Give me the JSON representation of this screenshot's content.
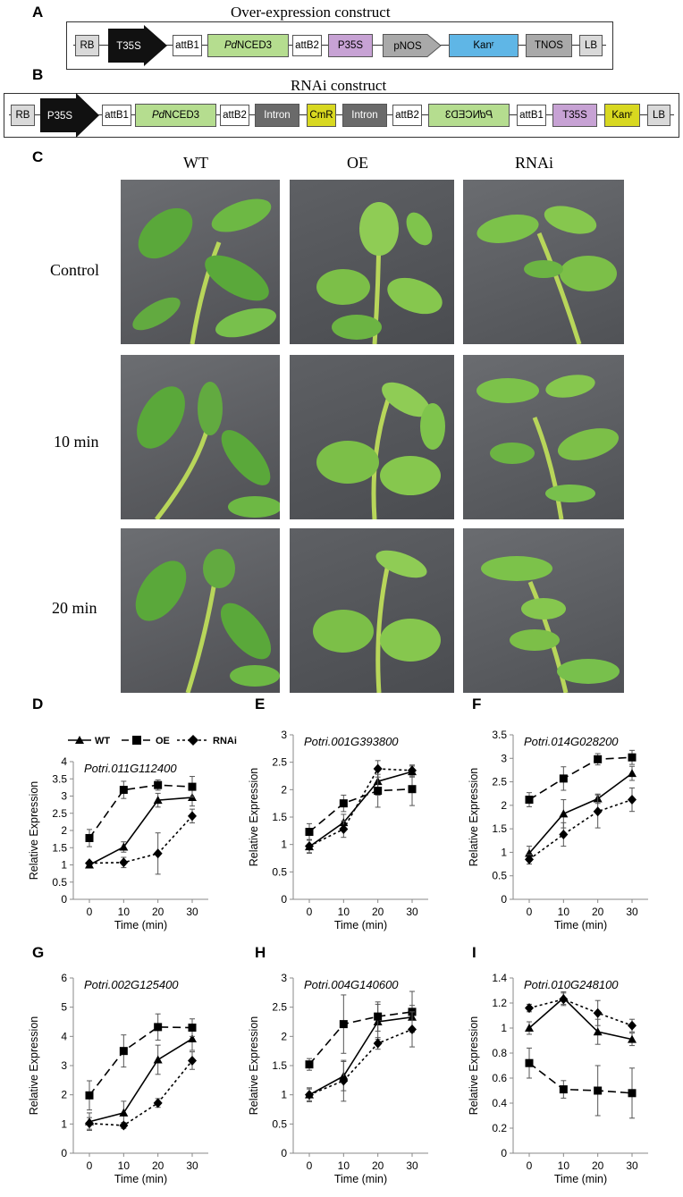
{
  "panels": {
    "A": "A",
    "B": "B",
    "C": "C",
    "D": "D",
    "E": "E",
    "F": "F",
    "G": "G",
    "H": "H",
    "I": "I"
  },
  "construct_a": {
    "title": "Over-expression construct",
    "elements": [
      "RB",
      "T35S",
      "attB1",
      "PdNCED3",
      "attB2",
      "P35S",
      "pNOS",
      "Kanʳ",
      "TNOS",
      "LB"
    ]
  },
  "construct_b": {
    "title": "RNAi construct",
    "elements": [
      "RB",
      "P35S",
      "attB1",
      "PdNCED3",
      "attB2",
      "Intron",
      "CmR",
      "Intron",
      "attB2",
      "PdNCED3",
      "attB1",
      "T35S",
      "Kanʳ",
      "LB"
    ]
  },
  "photos": {
    "columns": [
      "WT",
      "OE",
      "RNAi"
    ],
    "rows": [
      "Control",
      "10 min",
      "20 min"
    ]
  },
  "legend": {
    "wt": "WT",
    "oe": "OE",
    "rnai": "RNAi"
  },
  "chart_data": [
    {
      "panel": "D",
      "type": "line",
      "title": "Potri.011G112400",
      "xlabel": "Time (min)",
      "ylabel": "Relative Expression",
      "x": [
        0,
        10,
        20,
        30
      ],
      "ylim": [
        0,
        4
      ],
      "yticks": [
        0,
        0.5,
        1,
        1.5,
        2,
        2.5,
        3,
        3.5,
        4
      ],
      "series": [
        {
          "name": "WT",
          "values": [
            1.0,
            1.52,
            2.88,
            2.96
          ],
          "err": [
            0.05,
            0.15,
            0.2,
            0.25
          ]
        },
        {
          "name": "OE",
          "values": [
            1.78,
            3.18,
            3.32,
            3.27
          ],
          "err": [
            0.25,
            0.25,
            0.15,
            0.3
          ]
        },
        {
          "name": "RNAi",
          "values": [
            1.05,
            1.07,
            1.33,
            2.42
          ],
          "err": [
            0.05,
            0.15,
            0.6,
            0.2
          ]
        }
      ]
    },
    {
      "panel": "E",
      "type": "line",
      "title": "Potri.001G393800",
      "xlabel": "Time (min)",
      "ylabel": "Relative Expression",
      "x": [
        0,
        10,
        20,
        30
      ],
      "ylim": [
        0,
        3
      ],
      "yticks": [
        0,
        0.5,
        1,
        1.5,
        2,
        2.5,
        3
      ],
      "series": [
        {
          "name": "WT",
          "values": [
            0.96,
            1.4,
            2.15,
            2.33
          ],
          "err": [
            0.12,
            0.15,
            0.25,
            0.1
          ]
        },
        {
          "name": "OE",
          "values": [
            1.23,
            1.75,
            1.98,
            2.01
          ],
          "err": [
            0.15,
            0.15,
            0.3,
            0.3
          ]
        },
        {
          "name": "RNAi",
          "values": [
            0.97,
            1.28,
            2.38,
            2.35
          ],
          "err": [
            0.12,
            0.15,
            0.15,
            0.1
          ]
        }
      ]
    },
    {
      "panel": "F",
      "type": "line",
      "title": "Potri.014G028200",
      "xlabel": "Time (min)",
      "ylabel": "Relative Expression",
      "x": [
        0,
        10,
        20,
        30
      ],
      "ylim": [
        0,
        3.5
      ],
      "yticks": [
        0,
        0.5,
        1,
        1.5,
        2,
        2.5,
        3,
        3.5
      ],
      "series": [
        {
          "name": "WT",
          "values": [
            0.98,
            1.82,
            2.14,
            2.68
          ],
          "err": [
            0.15,
            0.3,
            0.1,
            0.15
          ]
        },
        {
          "name": "OE",
          "values": [
            2.12,
            2.57,
            2.98,
            3.02
          ],
          "err": [
            0.15,
            0.25,
            0.12,
            0.15
          ]
        },
        {
          "name": "RNAi",
          "values": [
            0.85,
            1.38,
            1.87,
            2.12
          ],
          "err": [
            0.1,
            0.25,
            0.35,
            0.25
          ]
        }
      ]
    },
    {
      "panel": "G",
      "type": "line",
      "title": "Potri.002G125400",
      "xlabel": "Time (min)",
      "ylabel": "Relative Expression",
      "x": [
        0,
        10,
        20,
        30
      ],
      "ylim": [
        0,
        6
      ],
      "yticks": [
        0,
        1,
        2,
        3,
        4,
        5,
        6
      ],
      "series": [
        {
          "name": "WT",
          "values": [
            1.08,
            1.38,
            3.2,
            3.92
          ],
          "err": [
            0.3,
            0.4,
            0.5,
            0.4
          ]
        },
        {
          "name": "OE",
          "values": [
            1.98,
            3.5,
            4.32,
            4.3
          ],
          "err": [
            0.5,
            0.55,
            0.45,
            0.3
          ]
        },
        {
          "name": "RNAi",
          "values": [
            1.02,
            0.95,
            1.72,
            3.17
          ],
          "err": [
            0.2,
            0.1,
            0.15,
            0.3
          ]
        }
      ]
    },
    {
      "panel": "H",
      "type": "line",
      "title": "Potri.004G140600",
      "xlabel": "Time (min)",
      "ylabel": "Relative Expression",
      "x": [
        0,
        10,
        20,
        30
      ],
      "ylim": [
        0,
        3
      ],
      "yticks": [
        0,
        0.5,
        1,
        1.5,
        2,
        2.5,
        3
      ],
      "series": [
        {
          "name": "WT",
          "values": [
            1.0,
            1.32,
            2.25,
            2.33
          ],
          "err": [
            0.12,
            0.25,
            0.3,
            0.2
          ]
        },
        {
          "name": "OE",
          "values": [
            1.52,
            2.21,
            2.34,
            2.42
          ],
          "err": [
            0.1,
            0.5,
            0.25,
            0.35
          ]
        },
        {
          "name": "RNAi",
          "values": [
            1.0,
            1.24,
            1.88,
            2.12
          ],
          "err": [
            0.1,
            0.35,
            0.1,
            0.3
          ]
        }
      ]
    },
    {
      "panel": "I",
      "type": "line",
      "title": "Potri.010G248100",
      "xlabel": "Time (min)",
      "ylabel": "Relative Expression",
      "x": [
        0,
        10,
        20,
        30
      ],
      "ylim": [
        0,
        1.4
      ],
      "yticks": [
        0,
        0.2,
        0.4,
        0.6,
        0.8,
        1,
        1.2,
        1.4
      ],
      "series": [
        {
          "name": "WT",
          "values": [
            1.0,
            1.24,
            0.97,
            0.91
          ],
          "err": [
            0.05,
            0.05,
            0.1,
            0.05
          ]
        },
        {
          "name": "OE",
          "values": [
            0.72,
            0.51,
            0.5,
            0.48
          ],
          "err": [
            0.12,
            0.07,
            0.2,
            0.2
          ]
        },
        {
          "name": "RNAi",
          "values": [
            1.16,
            1.23,
            1.12,
            1.02
          ],
          "err": [
            0.03,
            0.05,
            0.1,
            0.05
          ]
        }
      ]
    }
  ]
}
